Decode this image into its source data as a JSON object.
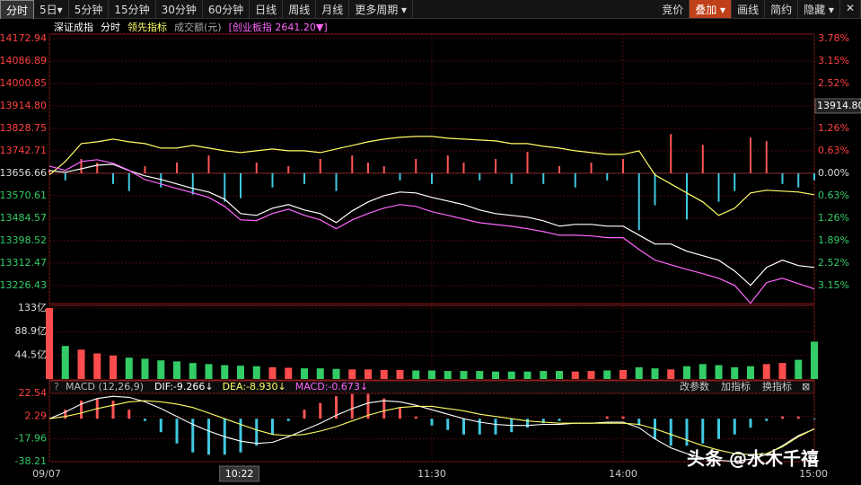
{
  "toolbar": {
    "left": [
      "分时",
      "5日▾",
      "5分钟",
      "15分钟",
      "30分钟",
      "60分钟",
      "日线",
      "周线",
      "月线",
      "更多周期 ▾"
    ],
    "right": [
      "竞价",
      "叠加 ▾",
      "画线",
      "简约",
      "隐藏 ▾",
      "✕"
    ]
  },
  "header": {
    "turnover": "成交额(元)",
    "overlay": "[创业板指 2641.20▼]",
    "mode": "分时"
  },
  "cursor": {
    "time": {
      "value": 52,
      "label": "10:22"
    },
    "price": {
      "value": 13914.8,
      "label": "13914.80"
    }
  },
  "watermark": "头条 @水木千禧",
  "chart_data": [
    {
      "type": "line",
      "x": [
        0,
        5,
        10,
        15,
        20,
        25,
        30,
        35,
        40,
        45,
        50,
        55,
        60,
        65,
        70,
        75,
        80,
        85,
        90,
        95,
        100,
        105,
        110,
        115,
        120,
        125,
        130,
        135,
        140,
        145,
        150,
        155,
        160,
        165,
        170,
        175,
        180,
        185,
        190,
        195,
        200,
        205,
        210,
        215,
        220,
        225,
        230,
        235,
        240
      ],
      "xlim": [
        0,
        240
      ],
      "ylim": [
        13157,
        14173
      ],
      "y2lim": [
        -3.66,
        3.78
      ],
      "yticks": [
        14172.94,
        14086.89,
        14000.85,
        {
          "value": 13914.8,
          "label": "13914.80"
        },
        13828.75,
        13742.71,
        13656.66,
        13570.61,
        13484.57,
        13398.52,
        13312.47,
        13226.43
      ],
      "y2ticks": [
        {
          "value": 3.78,
          "label": "3.78%"
        },
        {
          "value": 3.15,
          "label": "3.15%"
        },
        {
          "value": 2.52,
          "label": "2.52%"
        },
        {
          "value": 1.89,
          "label": "1.89%"
        },
        {
          "value": 1.26,
          "label": "1.26%"
        },
        {
          "value": 0.63,
          "label": "0.63%"
        },
        {
          "value": 0,
          "label": "0.00%"
        },
        {
          "value": -0.63,
          "label": "0.63%"
        },
        {
          "value": -1.26,
          "label": "1.26%"
        },
        {
          "value": -1.89,
          "label": "1.89%"
        },
        {
          "value": -2.52,
          "label": "2.52%"
        },
        {
          "value": -3.15,
          "label": "3.15%"
        }
      ],
      "series": [
        {
          "name": "深证成指",
          "color": "#ffffff",
          "values": [
            13667.2,
            13660.4,
            13674.1,
            13687.9,
            13691.3,
            13667.2,
            13646.6,
            13632.9,
            13615.7,
            13598.5,
            13584.7,
            13557.2,
            13502.2,
            13495.3,
            13522.8,
            13536.5,
            13515.9,
            13502.2,
            13467.7,
            13512.4,
            13546.8,
            13571.0,
            13584.7,
            13581.3,
            13564.1,
            13550.3,
            13536.5,
            13515.9,
            13502.2,
            13495.3,
            13488.4,
            13474.7,
            13454.0,
            13460.9,
            13460.9,
            13454.0,
            13454.0,
            13419.6,
            13385.2,
            13385.2,
            13357.7,
            13340.5,
            13323.3,
            13282.0,
            13227.0,
            13295.8,
            13323.3,
            13302.6,
            13295.8
          ]
        },
        {
          "name": "领先指标",
          "color": "#ffff66",
          "values": [
            13650.1,
            13701.7,
            13770.5,
            13777.4,
            13787.6,
            13777.4,
            13770.5,
            13753.3,
            13753.3,
            13763.6,
            13753.3,
            13743.0,
            13736.1,
            13743.0,
            13749.8,
            13743.0,
            13743.0,
            13736.1,
            13749.8,
            13763.6,
            13777.4,
            13787.6,
            13794.5,
            13797.9,
            13797.9,
            13791.1,
            13787.6,
            13784.2,
            13780.8,
            13770.5,
            13770.5,
            13760.1,
            13753.3,
            13743.0,
            13736.1,
            13729.2,
            13729.2,
            13743.0,
            13650.1,
            13615.7,
            13581.3,
            13546.8,
            13495.3,
            13522.8,
            13581.3,
            13591.6,
            13588.1,
            13584.7,
            13574.4
          ]
        },
        {
          "color": "#ff66ff",
          "axis": "y2",
          "values": [
            0.2,
            0.08,
            0.33,
            0.38,
            0.28,
            0.08,
            -0.18,
            -0.3,
            -0.43,
            -0.55,
            -0.68,
            -0.93,
            -1.31,
            -1.33,
            -1.13,
            -1.01,
            -1.18,
            -1.31,
            -1.56,
            -1.31,
            -1.13,
            -0.98,
            -0.88,
            -0.93,
            -1.08,
            -1.18,
            -1.29,
            -1.39,
            -1.44,
            -1.49,
            -1.56,
            -1.64,
            -1.74,
            -1.74,
            -1.76,
            -1.81,
            -1.81,
            -2.14,
            -2.44,
            -2.57,
            -2.7,
            -2.82,
            -2.95,
            -3.15,
            -3.65,
            -3.07,
            -2.95,
            -3.1,
            -3.25
          ]
        }
      ],
      "bars": {
        "axis": "y2",
        "up_color": "#ff5555",
        "down_color": "#40c8e0",
        "values": [
          0.1,
          -0.2,
          0.4,
          0.3,
          -0.3,
          -0.5,
          0.2,
          -0.4,
          0.3,
          -0.6,
          0.5,
          -0.8,
          -0.7,
          0.3,
          -0.4,
          0.2,
          -0.3,
          0.4,
          -0.5,
          0.5,
          0.3,
          0.2,
          -0.2,
          0.4,
          -0.3,
          0.5,
          0.3,
          -0.2,
          0.4,
          -0.3,
          0.6,
          -0.3,
          0.2,
          -0.4,
          0.3,
          -0.2,
          0.4,
          -1.6,
          -0.9,
          1.1,
          -1.3,
          0.8,
          -0.8,
          -0.5,
          1.0,
          0.9,
          -0.3,
          -0.4,
          -0.2
        ]
      }
    },
    {
      "type": "bar",
      "up_color": "#ff4d4d",
      "down_color": "#33cc66",
      "values": [
        133,
        62,
        55,
        48,
        44,
        40,
        38,
        35,
        33,
        30,
        28,
        26,
        25,
        24,
        22,
        21,
        20,
        20,
        19,
        18,
        18,
        17,
        17,
        16,
        16,
        15,
        15,
        15,
        14,
        14,
        14,
        15,
        15,
        14,
        15,
        16,
        17,
        22,
        20,
        18,
        24,
        28,
        26,
        22,
        24,
        28,
        30,
        36,
        70
      ],
      "ylim": [
        0,
        133
      ],
      "yticks": [
        {
          "value": 133,
          "label": "133亿"
        },
        {
          "value": 88.9,
          "label": "88.9亿"
        },
        {
          "value": 44.5,
          "label": "44.5亿"
        }
      ]
    },
    {
      "type": "macd",
      "title": "MACD (12,26,9)",
      "readout": [
        "DIF:-9.266↓",
        "DEA:-8.930↓",
        "MACD:-0.673↓"
      ],
      "buttons": [
        "改参数",
        "加指标",
        "换指标"
      ],
      "ylim": [
        -38.21,
        22.54
      ],
      "yticks": [
        22.54,
        2.29,
        -17.96,
        -38.21
      ],
      "xticks": [
        {
          "value": 0,
          "label": "09/07"
        },
        {
          "value": 120,
          "label": "11:30"
        },
        {
          "value": 180,
          "label": "14:00"
        },
        {
          "value": 240,
          "label": "15:00"
        }
      ],
      "series": [
        {
          "name": "DIF",
          "color": "#ffffff",
          "values": [
            0,
            6,
            13,
            18,
            20,
            19,
            15,
            9,
            2,
            -5,
            -11,
            -16,
            -20,
            -22,
            -21,
            -16,
            -10,
            -4,
            3,
            9,
            14,
            16,
            15,
            12,
            8,
            4,
            0,
            -3,
            -5,
            -6,
            -6,
            -5,
            -5,
            -4,
            -4,
            -3,
            -3,
            -8,
            -18,
            -26,
            -31,
            -35,
            -37,
            -38,
            -36,
            -32,
            -24,
            -15,
            -9.266
          ]
        },
        {
          "name": "DEA",
          "color": "#ffff66",
          "values": [
            0,
            2,
            5,
            9,
            12,
            15,
            16,
            15,
            13,
            10,
            5,
            0,
            -5,
            -10,
            -14,
            -15,
            -14,
            -11,
            -7,
            -2,
            3,
            7,
            10,
            11,
            11,
            9,
            7,
            4,
            2,
            0,
            -2,
            -3,
            -4,
            -4,
            -4,
            -4,
            -4,
            -5,
            -9,
            -14,
            -19,
            -24,
            -28,
            -31,
            -32,
            -31,
            -25,
            -16,
            -8.93
          ]
        },
        {
          "name": "MACD",
          "up_color": "#ff5555",
          "down_color": "#40c8e0",
          "values": [
            0,
            8,
            16,
            18,
            16,
            8,
            -2,
            -12,
            -22,
            -30,
            -32,
            -32,
            -30,
            -24,
            -14,
            -2,
            8,
            14,
            20,
            22,
            22,
            18,
            10,
            2,
            -6,
            -10,
            -14,
            -14,
            -14,
            -12,
            -8,
            -4,
            -2,
            0,
            0,
            2,
            2,
            -6,
            -18,
            -24,
            -24,
            -22,
            -18,
            -14,
            -8,
            -2,
            2,
            2,
            -0.673
          ]
        }
      ]
    }
  ]
}
